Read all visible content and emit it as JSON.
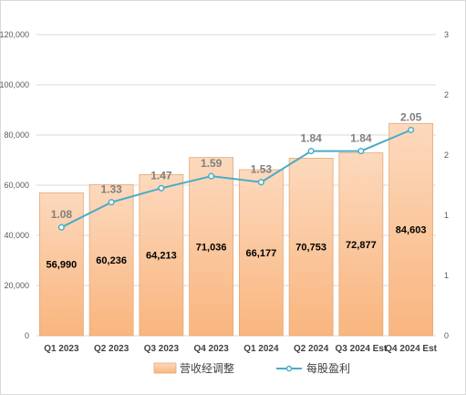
{
  "chart_data": {
    "type": "bar",
    "categories": [
      "Q1 2023",
      "Q2 2023",
      "Q3 2023",
      "Q4 2023",
      "Q1 2024",
      "Q2 2024",
      "Q3 2024 Est",
      "Q4 2024 Est"
    ],
    "title": "",
    "xlabel": "",
    "ylabel": "",
    "ylim": [
      0,
      120000
    ],
    "y2lim": [
      0,
      3
    ],
    "yticks": [
      "0",
      "20,000",
      "40,000",
      "60,000",
      "80,000",
      "100,000",
      "120,000"
    ],
    "y2ticks": [
      "0",
      "1",
      "1",
      "2",
      "2",
      "3"
    ],
    "grid": true,
    "legend": "bottom",
    "series": [
      {
        "name": "营收经调整",
        "type": "bar",
        "axis": "left",
        "values": [
          56990,
          60236,
          64213,
          71036,
          66177,
          70753,
          72877,
          84603
        ],
        "labels": [
          "56,990",
          "60,236",
          "64,213",
          "71,036",
          "66,177",
          "70,753",
          "72,877",
          "84,603"
        ],
        "color": "#f8cba4"
      },
      {
        "name": "每股盈利",
        "type": "line",
        "axis": "right",
        "values": [
          1.08,
          1.33,
          1.47,
          1.59,
          1.53,
          1.84,
          1.84,
          2.05
        ],
        "labels": [
          "1.08",
          "1.33",
          "1.47",
          "1.59",
          "1.53",
          "1.84",
          "1.84",
          "2.05"
        ],
        "color": "#4bacc6"
      }
    ]
  }
}
